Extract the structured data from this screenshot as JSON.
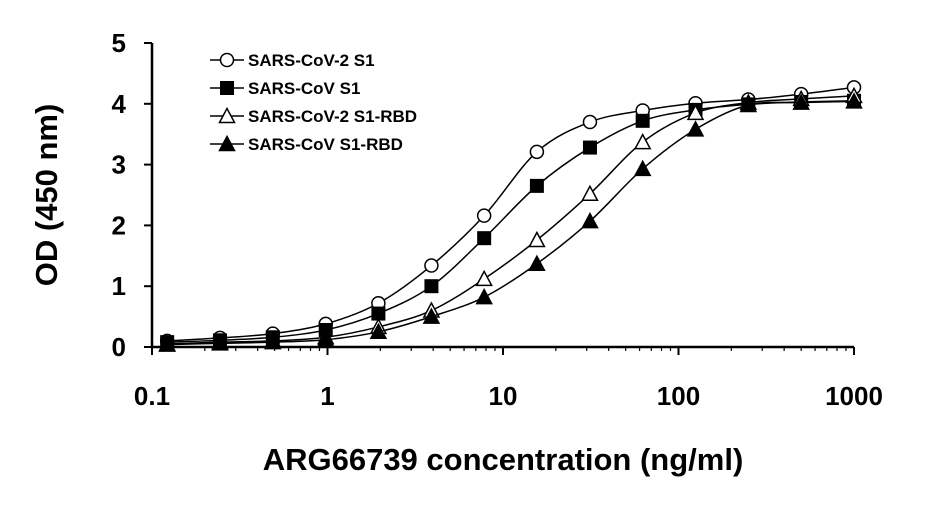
{
  "chart_data": {
    "type": "line",
    "xscale": "log",
    "xlabel": "ARG66739 concentration (ng/ml)",
    "ylabel": "OD (450 nm)",
    "xlim": [
      0.1,
      1000
    ],
    "ylim": [
      0,
      5
    ],
    "xticks": [
      0.1,
      1,
      10,
      100,
      1000
    ],
    "xtick_labels": [
      "0.1",
      "1",
      "10",
      "100",
      "1000"
    ],
    "yticks": [
      0,
      1,
      2,
      3,
      4,
      5
    ],
    "ytick_labels": [
      "0",
      "1",
      "2",
      "3",
      "4",
      "5"
    ],
    "grid": false,
    "legend_position": "top-left",
    "x": [
      0.122,
      0.244,
      0.488,
      0.977,
      1.95,
      3.91,
      7.81,
      15.6,
      31.3,
      62.5,
      125,
      250,
      500,
      1000
    ],
    "series": [
      {
        "name": "SARS-CoV-2 S1",
        "marker": "circle-open",
        "values": [
          0.1,
          0.15,
          0.22,
          0.38,
          0.72,
          1.34,
          2.16,
          3.21,
          3.7,
          3.89,
          4.01,
          4.07,
          4.16,
          4.27
        ]
      },
      {
        "name": "SARS-CoV S1",
        "marker": "square-filled",
        "values": [
          0.08,
          0.11,
          0.16,
          0.28,
          0.55,
          1.0,
          1.79,
          2.65,
          3.28,
          3.72,
          3.9,
          3.99,
          4.03,
          4.05
        ]
      },
      {
        "name": "SARS-CoV-2 S1-RBD",
        "marker": "triangle-open",
        "values": [
          0.05,
          0.08,
          0.1,
          0.16,
          0.33,
          0.6,
          1.12,
          1.76,
          2.52,
          3.37,
          3.85,
          4.02,
          4.08,
          4.13
        ]
      },
      {
        "name": "SARS-CoV S1-RBD",
        "marker": "triangle-filled",
        "values": [
          0.04,
          0.06,
          0.08,
          0.12,
          0.25,
          0.5,
          0.82,
          1.37,
          2.07,
          2.93,
          3.58,
          3.98,
          4.02,
          4.04
        ]
      }
    ]
  }
}
